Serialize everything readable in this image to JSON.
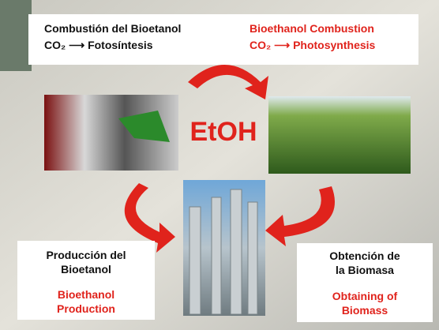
{
  "top": {
    "es": [
      "Combustión del Bioetanol",
      "CO₂ ⟶ Fotosíntesis"
    ],
    "en": [
      "Bioethanol Combustion",
      "CO₂ ⟶ Photosynthesis"
    ]
  },
  "center": "EtOH",
  "left": {
    "es": [
      "Producción del",
      "Bioetanol"
    ],
    "en": [
      "Bioethanol",
      "Production"
    ]
  },
  "right": {
    "es": [
      "Obtención de",
      "la Biomasa"
    ],
    "en": [
      "Obtaining of",
      "Biomass"
    ]
  }
}
